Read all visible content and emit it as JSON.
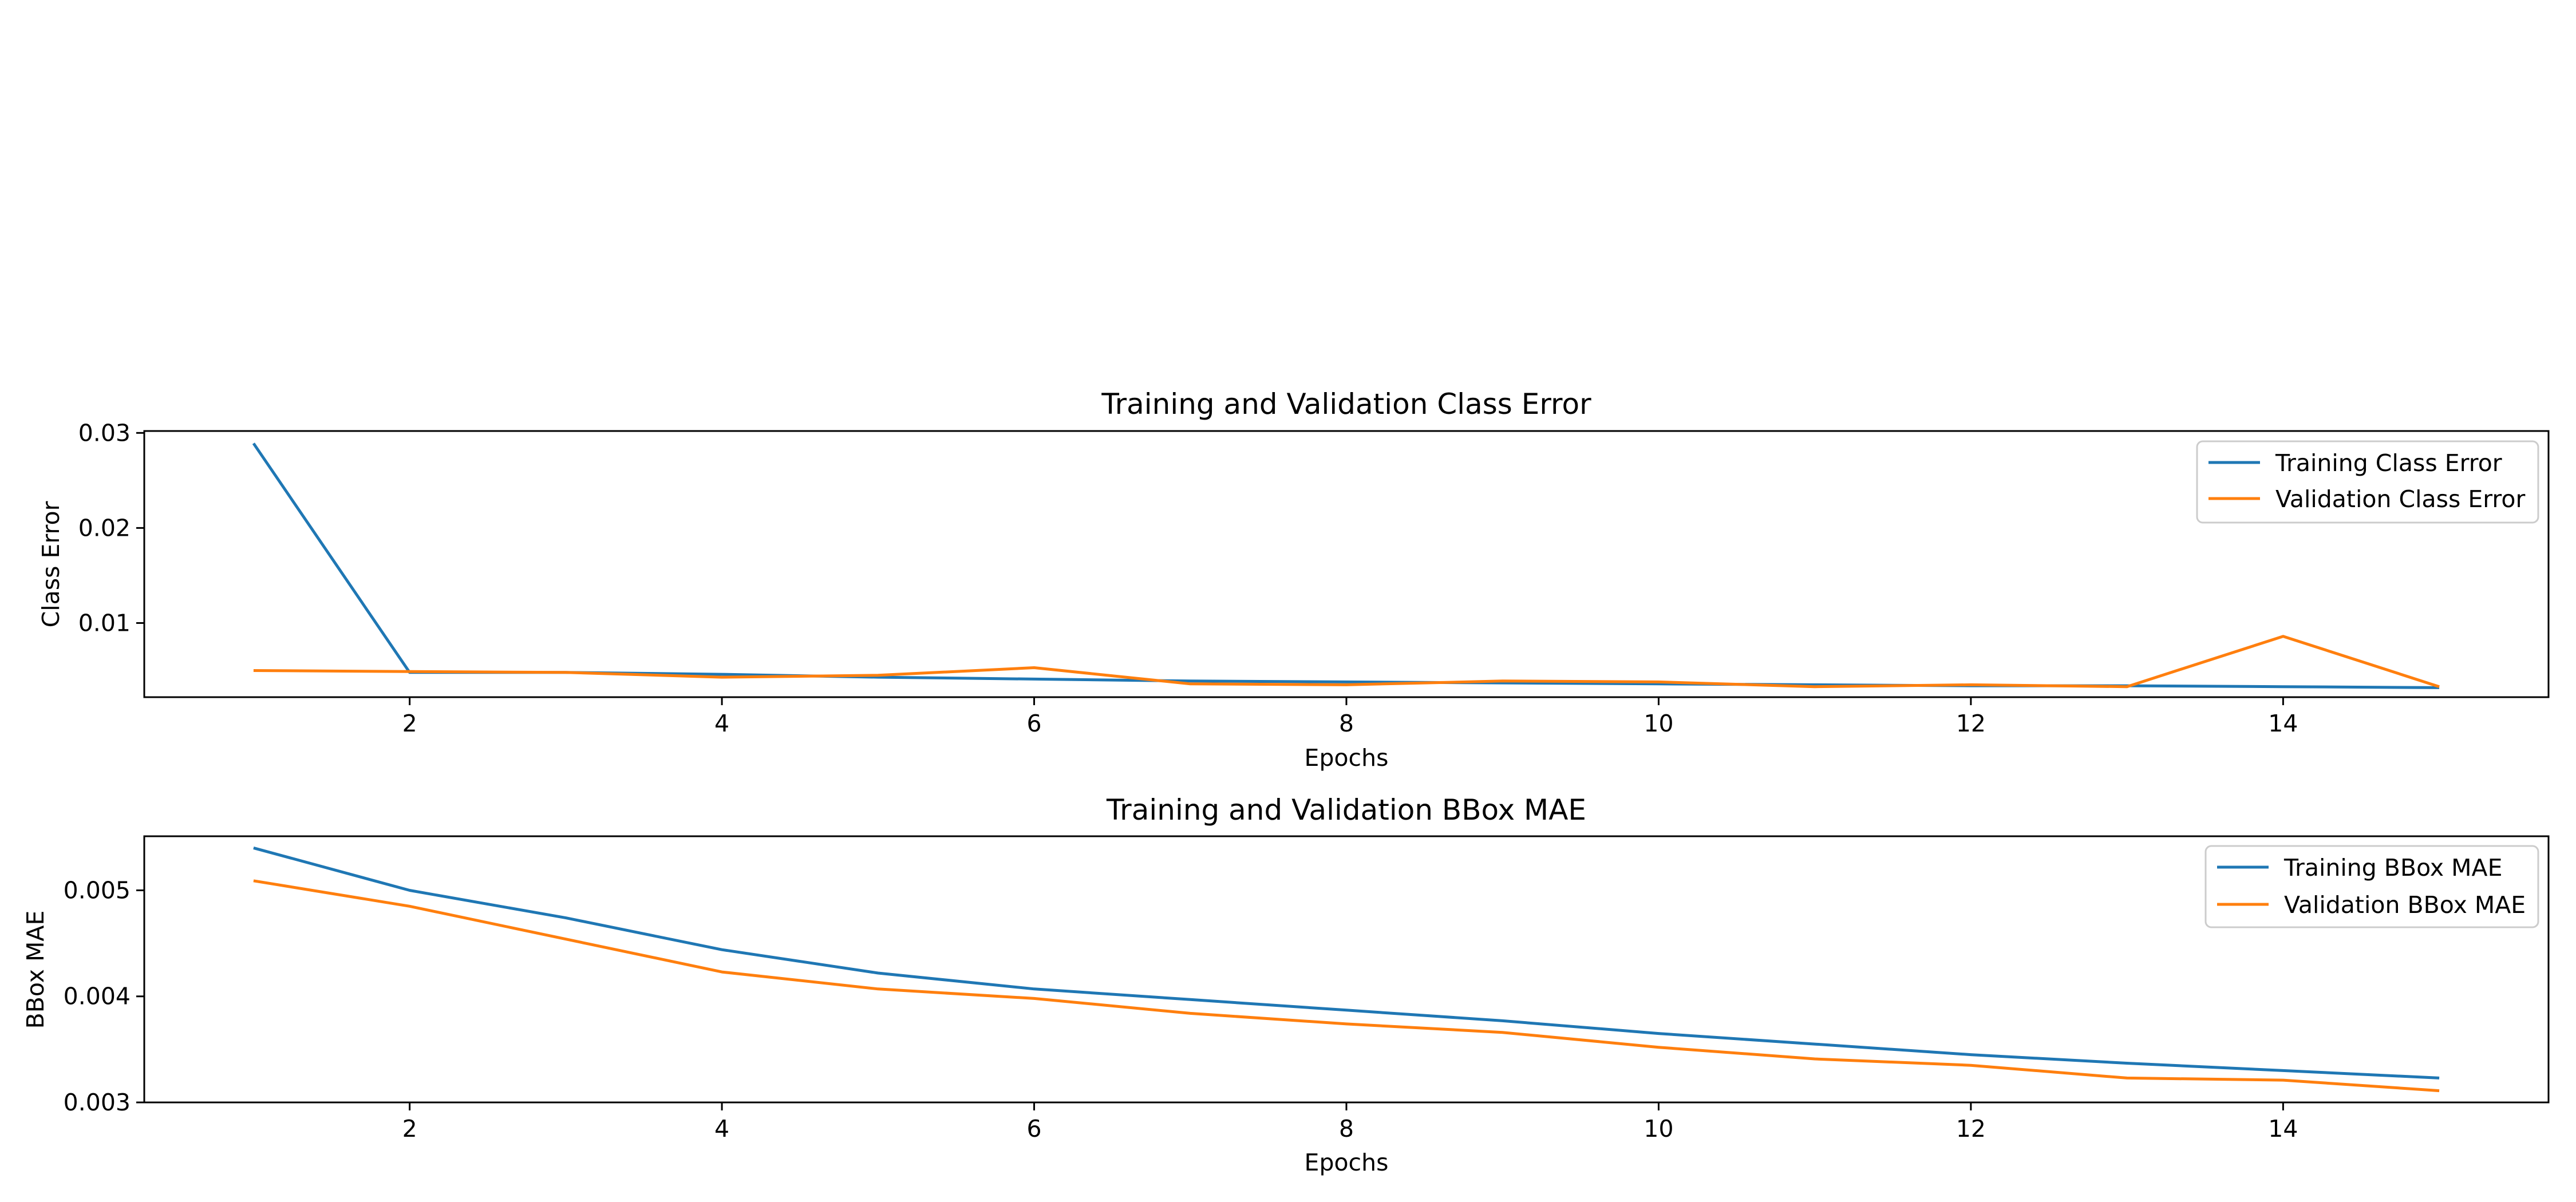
{
  "colors": {
    "training": "#1f77b4",
    "validation": "#ff7f0e"
  },
  "chart_data": [
    {
      "type": "line",
      "title": "Training and Validation Class Error",
      "xlabel": "Epochs",
      "ylabel": "Class Error",
      "x": [
        1,
        2,
        3,
        4,
        5,
        6,
        7,
        8,
        9,
        10,
        11,
        12,
        13,
        14,
        15
      ],
      "xlim": [
        0.3,
        15.7
      ],
      "ylim": [
        0.0022,
        0.0302
      ],
      "xticks": [
        2,
        4,
        6,
        8,
        10,
        12,
        14
      ],
      "xtick_labels": [
        "2",
        "4",
        "6",
        "8",
        "10",
        "12",
        "14"
      ],
      "yticks": [
        0.01,
        0.02,
        0.03
      ],
      "ytick_labels": [
        "0.01",
        "0.02",
        "0.03"
      ],
      "legend_position": "top-right",
      "grid": false,
      "series": [
        {
          "name": "Training Class Error",
          "color": "#1f77b4",
          "values": [
            0.0289,
            0.0048,
            0.0048,
            0.0046,
            0.0043,
            0.0041,
            0.0039,
            0.0038,
            0.0037,
            0.0036,
            0.0035,
            0.0034,
            0.0034,
            0.0033,
            0.0032
          ]
        },
        {
          "name": "Validation Class Error",
          "color": "#ff7f0e",
          "values": [
            0.005,
            0.0049,
            0.0048,
            0.0043,
            0.0045,
            0.0053,
            0.0036,
            0.0035,
            0.0039,
            0.0038,
            0.0033,
            0.0035,
            0.0033,
            0.0086,
            0.0033
          ]
        }
      ]
    },
    {
      "type": "line",
      "title": "Training and Validation BBox MAE",
      "xlabel": "Epochs",
      "ylabel": "BBox MAE",
      "x": [
        1,
        2,
        3,
        4,
        5,
        6,
        7,
        8,
        9,
        10,
        11,
        12,
        13,
        14,
        15
      ],
      "xlim": [
        0.3,
        15.7
      ],
      "ylim": [
        0.003,
        0.00551
      ],
      "xticks": [
        2,
        4,
        6,
        8,
        10,
        12,
        14
      ],
      "xtick_labels": [
        "2",
        "4",
        "6",
        "8",
        "10",
        "12",
        "14"
      ],
      "yticks": [
        0.003,
        0.004,
        0.005
      ],
      "ytick_labels": [
        "0.003",
        "0.004",
        "0.005"
      ],
      "legend_position": "top-right",
      "grid": false,
      "series": [
        {
          "name": "Training BBox MAE",
          "color": "#1f77b4",
          "values": [
            0.0054,
            0.005,
            0.00474,
            0.00444,
            0.00422,
            0.00407,
            0.00397,
            0.00387,
            0.00377,
            0.00365,
            0.00355,
            0.00345,
            0.00337,
            0.0033,
            0.00323
          ]
        },
        {
          "name": "Validation BBox MAE",
          "color": "#ff7f0e",
          "values": [
            0.00509,
            0.00485,
            0.00454,
            0.00423,
            0.00407,
            0.00398,
            0.00384,
            0.00374,
            0.00366,
            0.00352,
            0.00341,
            0.00335,
            0.00323,
            0.00321,
            0.00311
          ]
        }
      ]
    }
  ]
}
